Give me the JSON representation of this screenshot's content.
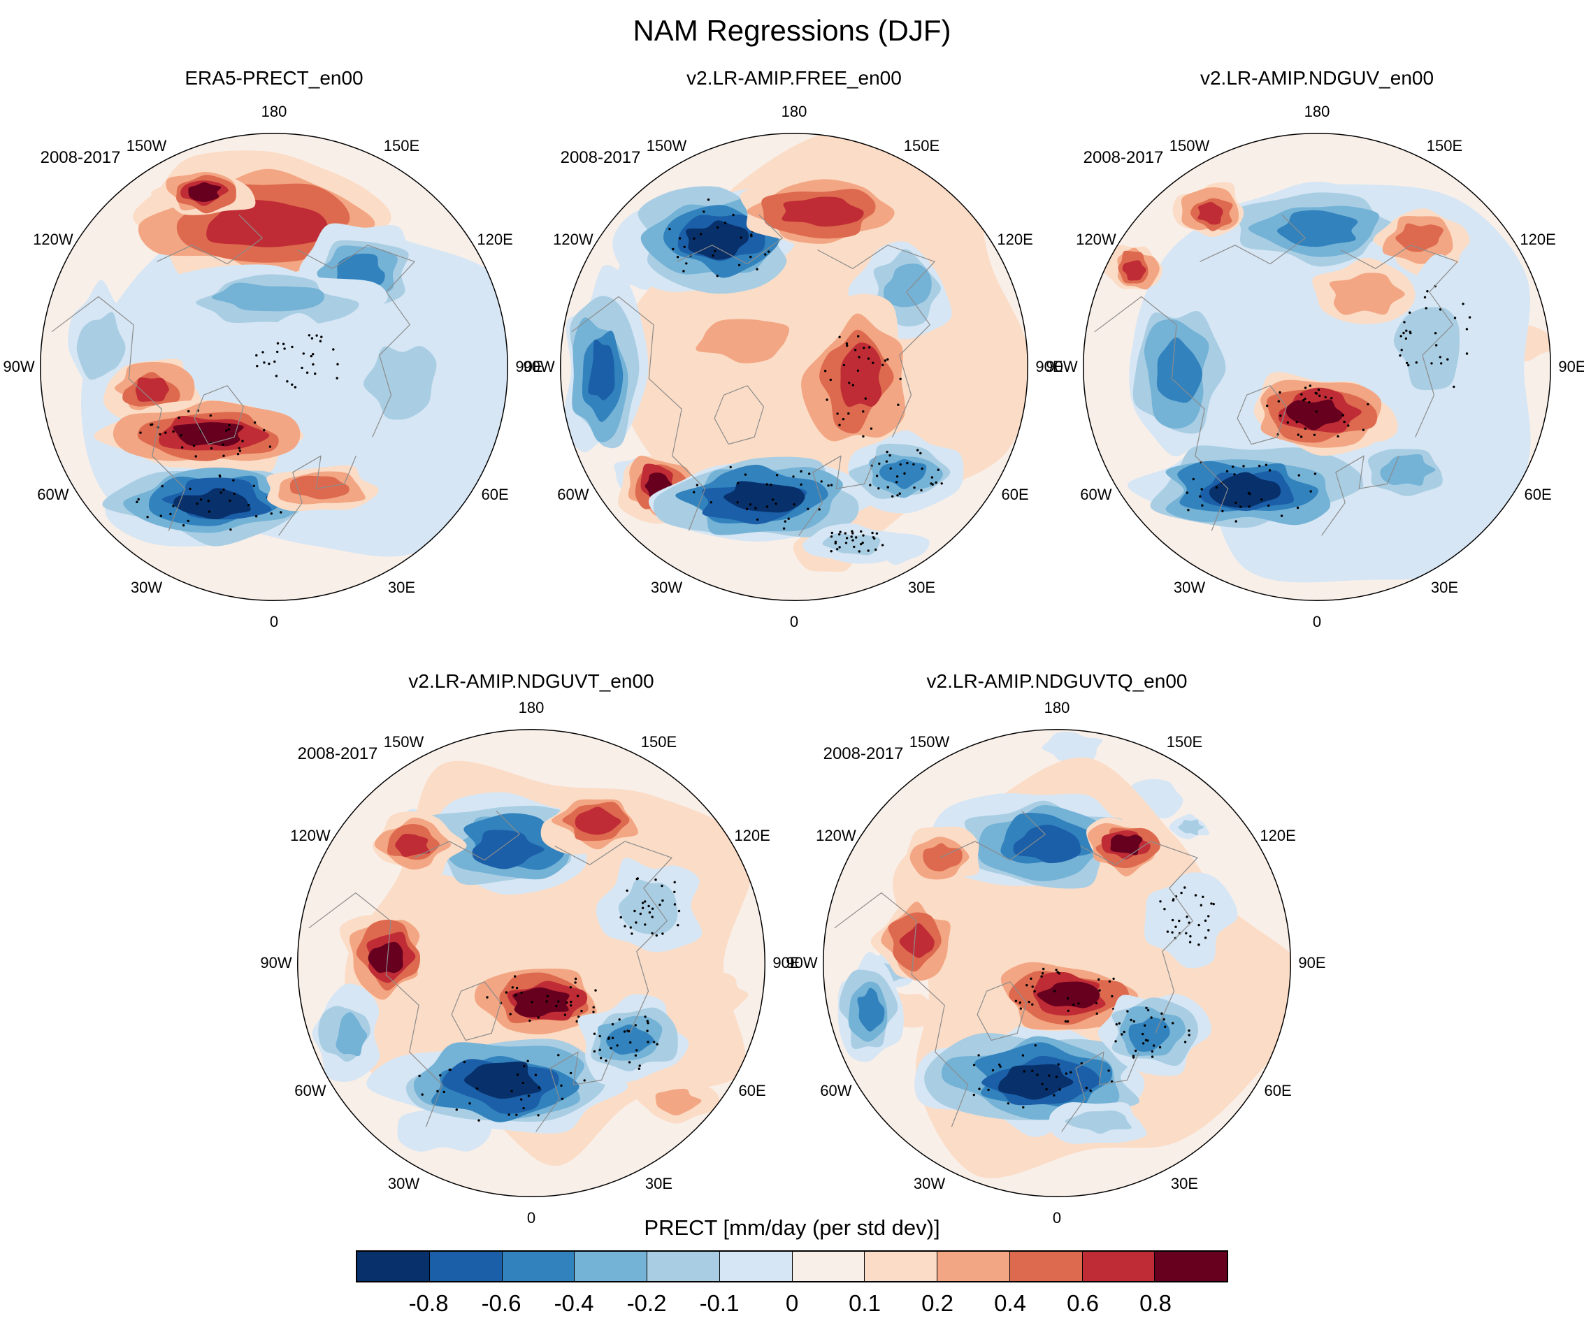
{
  "figure": {
    "title": "NAM Regressions (DJF)",
    "period_label": "2008-2017",
    "colorbar_label": "PRECT [mm/day (per std dev)]"
  },
  "panels": [
    {
      "title": "ERA5-PRECT_en00",
      "period": "2008-2017"
    },
    {
      "title": "v2.LR-AMIP.FREE_en00",
      "period": "2008-2017"
    },
    {
      "title": "v2.LR-AMIP.NDGUV_en00",
      "period": "2008-2017"
    },
    {
      "title": "v2.LR-AMIP.NDGUVT_en00",
      "period": "2008-2017"
    },
    {
      "title": "v2.LR-AMIP.NDGUVTQ_en00",
      "period": "2008-2017"
    }
  ],
  "lon_labels": [
    "180",
    "150E",
    "120E",
    "90E",
    "60E",
    "30E",
    "0",
    "30W",
    "60W",
    "90W",
    "120W",
    "150W"
  ],
  "colorbar": {
    "tick_labels": [
      "-0.8",
      "-0.6",
      "-0.4",
      "-0.2",
      "-0.1",
      "0",
      "0.1",
      "0.2",
      "0.4",
      "0.6",
      "0.8"
    ],
    "colors": [
      "#08306B",
      "#1B5FA8",
      "#3182BD",
      "#74B2D6",
      "#A9CEE4",
      "#D6E6F4",
      "#F9EFE9",
      "#FBDCC6",
      "#F3A683",
      "#DD6A4F",
      "#C02C35",
      "#67001F"
    ]
  },
  "chart_data": {
    "type": "heatmap",
    "subtype": "filled-contour polar stereographic maps with significance stippling",
    "title": "NAM Regressions (DJF)",
    "layout": "5 circular north-polar map panels: 3 in top row, 2 in bottom row, one shared horizontal colorbar at bottom",
    "panels": [
      {
        "title": "ERA5-PRECT_en00",
        "period": "2008-2017"
      },
      {
        "title": "v2.LR-AMIP.FREE_en00",
        "period": "2008-2017"
      },
      {
        "title": "v2.LR-AMIP.NDGUV_en00",
        "period": "2008-2017"
      },
      {
        "title": "v2.LR-AMIP.NDGUVT_en00",
        "period": "2008-2017"
      },
      {
        "title": "v2.LR-AMIP.NDGUVTQ_en00",
        "period": "2008-2017"
      }
    ],
    "variable_label": "PRECT [mm/day (per std dev)]",
    "colorbar": {
      "orientation": "horizontal",
      "levels": [
        -0.8,
        -0.6,
        -0.4,
        -0.2,
        -0.1,
        0,
        0.1,
        0.2,
        0.4,
        0.6,
        0.8
      ],
      "segment_colors": [
        "#08306B",
        "#1B5FA8",
        "#3182BD",
        "#74B2D6",
        "#A9CEE4",
        "#D6E6F4",
        "#F9EFE9",
        "#FBDCC6",
        "#F3A683",
        "#DD6A4F",
        "#C02C35",
        "#67001F"
      ]
    },
    "longitude_tick_labels": [
      "180",
      "150W",
      "150E",
      "120W",
      "120E",
      "90W",
      "90E",
      "60W",
      "60E",
      "30W",
      "30E",
      "0"
    ]
  }
}
